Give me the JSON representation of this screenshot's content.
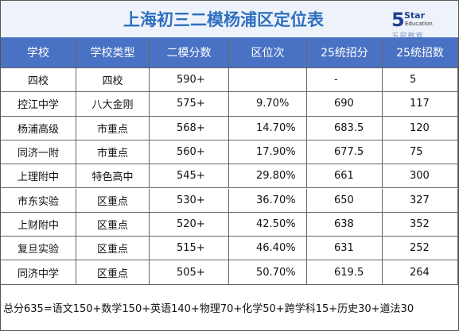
{
  "header": {
    "title": "上海初三二模杨浦区定位表",
    "logo": {
      "mark": "5Star",
      "sub": "Education",
      "cn": "五星教育"
    }
  },
  "table": {
    "columns": [
      "学校",
      "学校类型",
      "二模分数",
      "区位次",
      "25统招分",
      "25统招数"
    ],
    "rows": [
      [
        "四校",
        "四校",
        "590+",
        null,
        "-",
        "5"
      ],
      [
        "控江中学",
        "八大金刚",
        "575+",
        "9.70%",
        "690",
        "117"
      ],
      [
        "杨浦高级",
        "市重点",
        "568+",
        "14.70%",
        "683.5",
        "120"
      ],
      [
        "同济一附",
        "市重点",
        "560+",
        "17.90%",
        "677.5",
        "75"
      ],
      [
        "上理附中",
        "特色高中",
        "545+",
        "29.80%",
        "661",
        "300"
      ],
      [
        "市东实验",
        "区重点",
        "530+",
        "36.70%",
        "650",
        "327"
      ],
      [
        "上财附中",
        "区重点",
        "520+",
        "42.50%",
        "638",
        "352"
      ],
      [
        "复旦实验",
        "区重点",
        "515+",
        "46.40%",
        "631",
        "252"
      ],
      [
        "同济中学",
        "区重点",
        "505+",
        "50.70%",
        "619.5",
        "264"
      ]
    ]
  },
  "footer": {
    "note": "总分635=语文150+数学150+英语140+物理70+化学50+跨学科15+历史30+道法30"
  }
}
